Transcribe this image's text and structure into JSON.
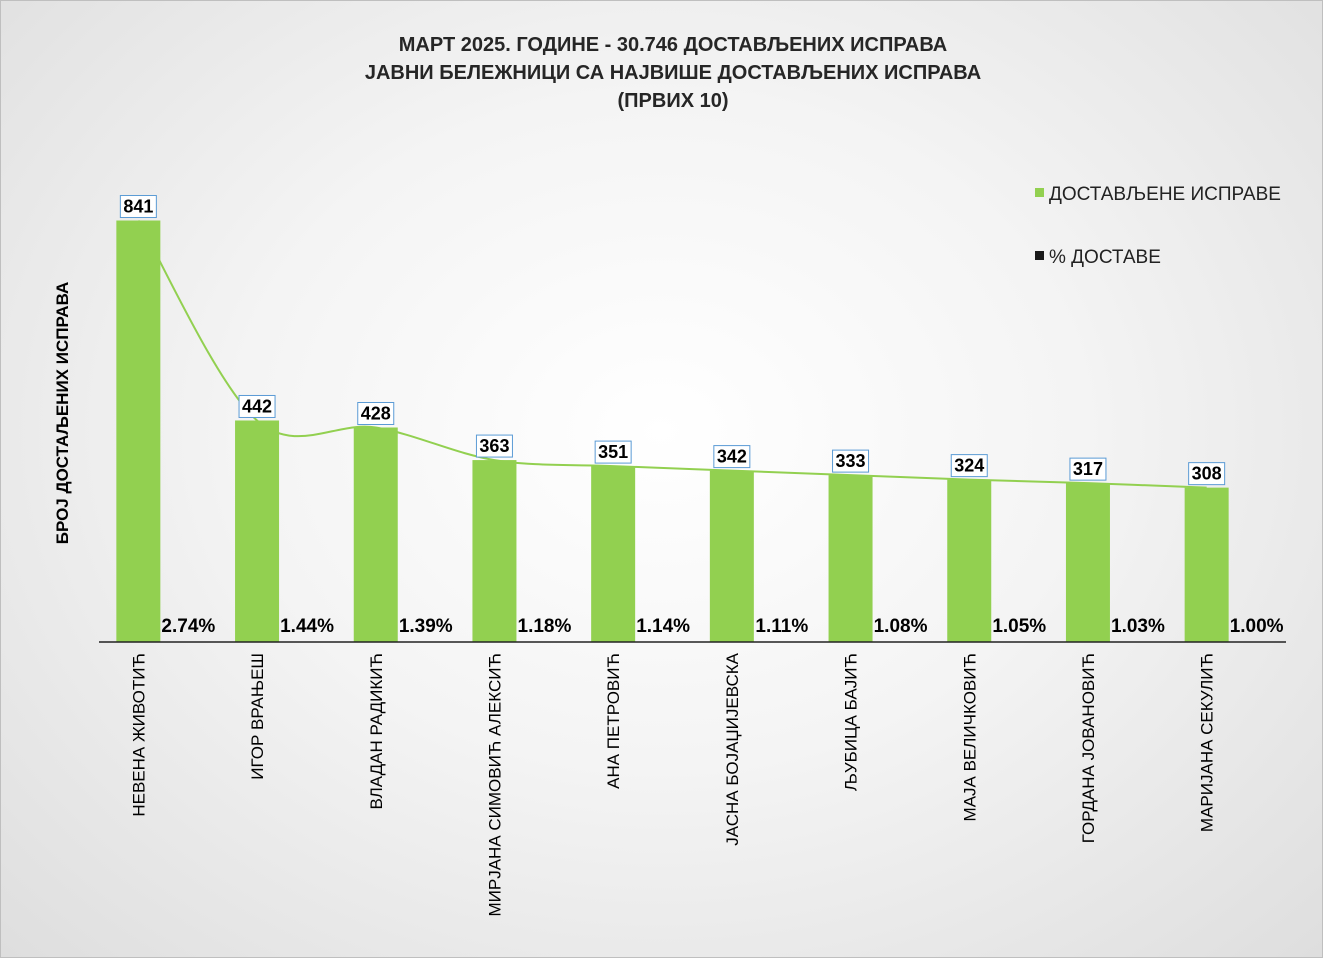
{
  "chart_data": {
    "type": "bar",
    "title_lines": [
      "МАРТ 2025. ГОДИНЕ - 30.746  ДОСТАВЉЕНИХ  ИСПРАВА",
      "ЈАВНИ БЕЛЕЖНИЦИ СА НАЈВИШЕ ДОСТАВЉЕНИХ  ИСПРАВА",
      "(ПРВИХ 10)"
    ],
    "ylabel": "БРОЈ ДОСТАЉЕНИХ ИСПРАВА",
    "xlabel": "",
    "ylim": [
      0,
      850
    ],
    "grid": false,
    "legend_position": "top-right",
    "categories": [
      "НЕВЕНА ЖИВОТИЋ",
      "ИГОР ВРАЊЕШ",
      "ВЛАДАН РАДИКИЋ",
      "МИРЈАНА СИМОВИЋ АЛЕКСИЋ",
      "АНА ПЕТРОВИЋ",
      "ЈАСНА БОЈАЏИЈЕВСКА",
      "ЉУБИЦА БАЈИЋ",
      "МАЈА ВЕЛИЧКОВИЋ",
      "ГОРДАНА ЈОВАНОВИЋ",
      "МАРИЈАНА СЕКУЛИЋ"
    ],
    "series": [
      {
        "name": "ДОСТАВЉЕНЕ  ИСПРАВЕ",
        "color": "#92d050",
        "values": [
          841,
          442,
          428,
          363,
          351,
          342,
          333,
          324,
          317,
          308
        ],
        "labels": [
          "841",
          "442",
          "428",
          "363",
          "351",
          "342",
          "333",
          "324",
          "317",
          "308"
        ]
      },
      {
        "name": "% ДОСТАВЕ",
        "color": "#1a1a1a",
        "values": [
          2.74,
          1.44,
          1.39,
          1.18,
          1.14,
          1.11,
          1.08,
          1.05,
          1.03,
          1.0
        ],
        "labels": [
          "2.74%",
          "1.44%",
          "1.39%",
          "1.18%",
          "1.14%",
          "1.11%",
          "1.08%",
          "1.05%",
          "1.03%",
          "1.00%"
        ]
      }
    ],
    "trendline_color": "#92d050"
  }
}
